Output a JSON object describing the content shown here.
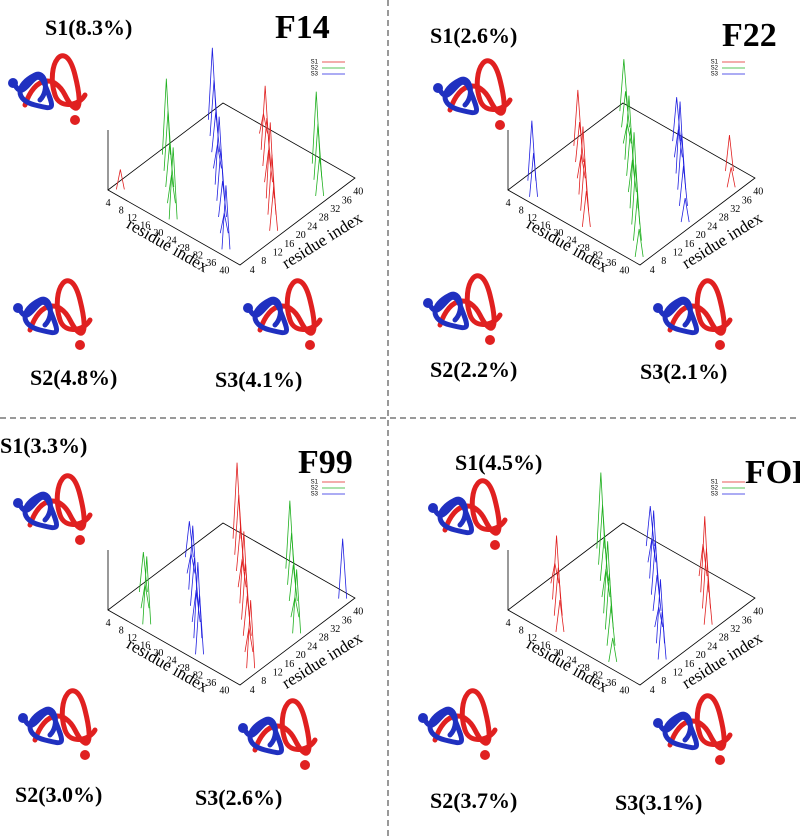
{
  "panels": [
    {
      "title": "F14",
      "states": [
        "S1(8.3%)",
        "S2(4.8%)",
        "S3(4.1%)"
      ],
      "legend": [
        "S1",
        "S2",
        "S3"
      ],
      "x_axis_label": "residue index",
      "y_axis_label": "residue index",
      "x_ticks": [
        4,
        8,
        12,
        16,
        20,
        24,
        28,
        32,
        36,
        40
      ],
      "y_ticks": [
        4,
        8,
        12,
        16,
        20,
        24,
        28,
        32,
        36,
        40
      ]
    },
    {
      "title": "F22",
      "states": [
        "S1(2.6%)",
        "S2(2.2%)",
        "S3(2.1%)"
      ],
      "legend": [
        "S1",
        "S2",
        "S3"
      ],
      "x_axis_label": "residue index",
      "y_axis_label": "residue index",
      "x_ticks": [
        4,
        8,
        12,
        16,
        20,
        24,
        28,
        32,
        36,
        40
      ],
      "y_ticks": [
        4,
        8,
        12,
        16,
        20,
        24,
        28,
        32,
        36,
        40
      ]
    },
    {
      "title": "F99",
      "states": [
        "S1(3.3%)",
        "S2(3.0%)",
        "S3(2.6%)"
      ],
      "legend": [
        "S1",
        "S2",
        "S3"
      ],
      "x_axis_label": "residue index",
      "y_axis_label": "residue index",
      "x_ticks": [
        4,
        8,
        12,
        16,
        20,
        24,
        28,
        32,
        36,
        40
      ],
      "y_ticks": [
        4,
        8,
        12,
        16,
        20,
        24,
        28,
        32,
        36,
        40
      ]
    },
    {
      "title": "FOP",
      "states": [
        "S1(4.5%)",
        "S2(3.7%)",
        "S3(3.1%)"
      ],
      "legend": [
        "S1",
        "S2",
        "S3"
      ],
      "x_axis_label": "residue index",
      "y_axis_label": "residue index",
      "x_ticks": [
        4,
        8,
        12,
        16,
        20,
        24,
        28,
        32,
        36,
        40
      ],
      "y_ticks": [
        4,
        8,
        12,
        16,
        20,
        24,
        28,
        32,
        36,
        40
      ]
    }
  ]
}
